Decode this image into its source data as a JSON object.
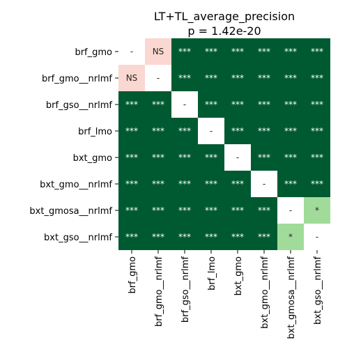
{
  "chart_data": {
    "type": "heatmap",
    "title": "LT+TL_average_precision",
    "subtitle": "p = 1.42e-20",
    "row_labels": [
      "brf_gmo",
      "brf_gmo__nrlmf",
      "brf_gso__nrlmf",
      "brf_lmo",
      "bxt_gmo",
      "bxt_gmo__nrlmf",
      "bxt_gmosa__nrlmf",
      "bxt_gso__nrlmf"
    ],
    "col_labels": [
      "brf_gmo",
      "brf_gmo__nrlmf",
      "brf_gso__nrlmf",
      "brf_lmo",
      "bxt_gmo",
      "bxt_gmo__nrlmf",
      "bxt_gmosa__nrlmf",
      "bxt_gso__nrlmf"
    ],
    "cells": [
      [
        "-",
        "NS",
        "***",
        "***",
        "***",
        "***",
        "***",
        "***"
      ],
      [
        "NS",
        "-",
        "***",
        "***",
        "***",
        "***",
        "***",
        "***"
      ],
      [
        "***",
        "***",
        "-",
        "***",
        "***",
        "***",
        "***",
        "***"
      ],
      [
        "***",
        "***",
        "***",
        "-",
        "***",
        "***",
        "***",
        "***"
      ],
      [
        "***",
        "***",
        "***",
        "***",
        "-",
        "***",
        "***",
        "***"
      ],
      [
        "***",
        "***",
        "***",
        "***",
        "***",
        "-",
        "***",
        "***"
      ],
      [
        "***",
        "***",
        "***",
        "***",
        "***",
        "***",
        "-",
        "*"
      ],
      [
        "***",
        "***",
        "***",
        "***",
        "***",
        "***",
        "*",
        "-"
      ]
    ],
    "colors": {
      "-": "#ffffff",
      "NS": "#fbd7d1",
      "*": "#a1db9a",
      "***": "#005a31"
    },
    "text_colors": {
      "-": "#262626",
      "NS": "#262626",
      "*": "#262626",
      "***": "#ffffff"
    },
    "grid": false,
    "legend": "none"
  }
}
